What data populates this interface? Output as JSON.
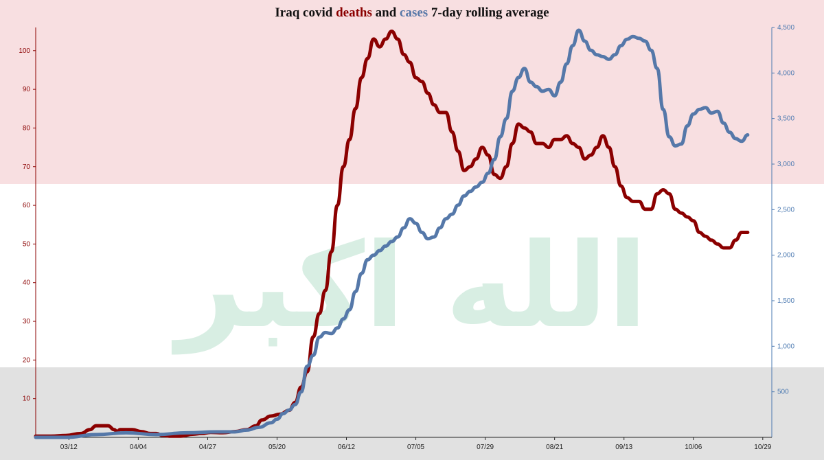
{
  "title": {
    "prefix": "Iraq covid ",
    "deaths_word": "deaths",
    "middle": " and ",
    "cases_word": "cases",
    "suffix": " 7-day rolling average"
  },
  "colors": {
    "deaths": "#8b0000",
    "cases": "#5578a9",
    "cases_early": "#4f8fc0",
    "flag_red": "#f8dfe1",
    "flag_white": "#ffffff",
    "flag_black": "#e1e1e1",
    "flag_green_text": "#d8eee3"
  },
  "watermark_text": "الله اكبر",
  "chart_data": {
    "type": "line",
    "title": "Iraq covid deaths and cases 7-day rolling average",
    "x_ticks": [
      "03/12",
      "04/04",
      "04/27",
      "05/20",
      "06/12",
      "07/05",
      "07/29",
      "08/21",
      "09/13",
      "10/06",
      "10/29"
    ],
    "x_start": "03/01",
    "x_range_days": [
      0,
      244
    ],
    "y_left": {
      "label": "deaths",
      "range": [
        0,
        106
      ],
      "ticks": [
        10,
        20,
        30,
        40,
        50,
        60,
        70,
        80,
        90,
        100
      ]
    },
    "y_right": {
      "label": "cases",
      "range": [
        0,
        4500
      ],
      "ticks": [
        500,
        1000,
        1500,
        2000,
        2500,
        3000,
        3500,
        4000,
        4500
      ],
      "tick_labels": [
        "500",
        "1,000",
        "1,500",
        "2,000",
        "2,500",
        "3,000",
        "3,500",
        "4,000",
        "4,500"
      ]
    },
    "grid": false,
    "legend": "none",
    "series": [
      {
        "name": "deaths",
        "axis": "left",
        "points": [
          [
            0,
            0.3
          ],
          [
            5,
            0.3
          ],
          [
            10,
            0.5
          ],
          [
            15,
            1
          ],
          [
            18,
            2
          ],
          [
            20,
            3
          ],
          [
            22,
            3
          ],
          [
            24,
            3
          ],
          [
            26,
            2
          ],
          [
            27,
            1.5
          ],
          [
            28,
            2
          ],
          [
            30,
            2
          ],
          [
            32,
            2
          ],
          [
            35,
            1.5
          ],
          [
            38,
            1
          ],
          [
            40,
            1
          ],
          [
            42,
            0.5
          ],
          [
            45,
            0.3
          ],
          [
            48,
            0.3
          ],
          [
            52,
            0.8
          ],
          [
            55,
            1
          ],
          [
            58,
            1.3
          ],
          [
            62,
            1.2
          ],
          [
            66,
            1.5
          ],
          [
            70,
            2
          ],
          [
            73,
            3
          ],
          [
            75,
            4.5
          ],
          [
            78,
            5.5
          ],
          [
            81,
            6
          ],
          [
            84,
            7
          ],
          [
            86,
            9
          ],
          [
            88,
            13
          ],
          [
            90,
            17
          ],
          [
            92,
            26
          ],
          [
            94,
            32
          ],
          [
            96,
            38
          ],
          [
            98,
            48
          ],
          [
            100,
            60
          ],
          [
            102,
            70
          ],
          [
            104,
            77
          ],
          [
            106,
            85
          ],
          [
            108,
            93
          ],
          [
            110,
            98
          ],
          [
            112,
            103
          ],
          [
            114,
            101
          ],
          [
            116,
            103
          ],
          [
            118,
            105
          ],
          [
            120,
            103
          ],
          [
            122,
            99
          ],
          [
            124,
            97
          ],
          [
            126,
            93
          ],
          [
            128,
            92
          ],
          [
            130,
            89
          ],
          [
            132,
            86
          ],
          [
            134,
            84
          ],
          [
            136,
            84
          ],
          [
            138,
            79
          ],
          [
            140,
            74
          ],
          [
            142,
            69
          ],
          [
            144,
            70
          ],
          [
            146,
            72
          ],
          [
            148,
            75
          ],
          [
            150,
            73
          ],
          [
            152,
            68
          ],
          [
            154,
            67
          ],
          [
            156,
            70
          ],
          [
            158,
            76
          ],
          [
            160,
            81
          ],
          [
            162,
            80
          ],
          [
            164,
            79
          ],
          [
            166,
            76
          ],
          [
            168,
            76
          ],
          [
            170,
            75
          ],
          [
            172,
            77
          ],
          [
            174,
            77
          ],
          [
            176,
            78
          ],
          [
            178,
            76
          ],
          [
            180,
            75
          ],
          [
            182,
            72
          ],
          [
            184,
            73
          ],
          [
            186,
            75
          ],
          [
            188,
            78
          ],
          [
            190,
            75
          ],
          [
            192,
            70
          ],
          [
            194,
            65
          ],
          [
            196,
            62
          ],
          [
            198,
            61
          ],
          [
            200,
            61
          ],
          [
            202,
            59
          ],
          [
            204,
            59
          ],
          [
            206,
            63
          ],
          [
            208,
            64
          ],
          [
            210,
            63
          ],
          [
            212,
            59
          ],
          [
            214,
            58
          ],
          [
            216,
            57
          ],
          [
            218,
            56
          ],
          [
            220,
            53
          ],
          [
            222,
            52
          ],
          [
            224,
            51
          ],
          [
            226,
            50
          ],
          [
            228,
            49
          ],
          [
            230,
            49
          ],
          [
            232,
            51
          ],
          [
            234,
            53
          ],
          [
            236,
            53
          ]
        ]
      },
      {
        "name": "cases",
        "axis": "right",
        "points": [
          [
            0,
            0
          ],
          [
            10,
            0
          ],
          [
            20,
            30
          ],
          [
            30,
            50
          ],
          [
            40,
            30
          ],
          [
            50,
            50
          ],
          [
            60,
            60
          ],
          [
            66,
            60
          ],
          [
            70,
            80
          ],
          [
            74,
            110
          ],
          [
            78,
            160
          ],
          [
            80,
            200
          ],
          [
            82,
            260
          ],
          [
            84,
            300
          ],
          [
            86,
            360
          ],
          [
            88,
            500
          ],
          [
            90,
            780
          ],
          [
            92,
            900
          ],
          [
            94,
            1100
          ],
          [
            96,
            1150
          ],
          [
            98,
            1140
          ],
          [
            100,
            1200
          ],
          [
            102,
            1300
          ],
          [
            104,
            1400
          ],
          [
            106,
            1600
          ],
          [
            108,
            1800
          ],
          [
            110,
            1950
          ],
          [
            112,
            2000
          ],
          [
            114,
            2050
          ],
          [
            116,
            2100
          ],
          [
            118,
            2150
          ],
          [
            120,
            2200
          ],
          [
            122,
            2300
          ],
          [
            124,
            2400
          ],
          [
            126,
            2350
          ],
          [
            128,
            2250
          ],
          [
            130,
            2180
          ],
          [
            132,
            2200
          ],
          [
            134,
            2300
          ],
          [
            136,
            2400
          ],
          [
            138,
            2450
          ],
          [
            140,
            2550
          ],
          [
            142,
            2650
          ],
          [
            144,
            2700
          ],
          [
            146,
            2750
          ],
          [
            148,
            2800
          ],
          [
            150,
            2900
          ],
          [
            152,
            3050
          ],
          [
            154,
            3300
          ],
          [
            156,
            3500
          ],
          [
            158,
            3800
          ],
          [
            160,
            3950
          ],
          [
            162,
            4050
          ],
          [
            164,
            3900
          ],
          [
            166,
            3850
          ],
          [
            168,
            3800
          ],
          [
            170,
            3820
          ],
          [
            172,
            3750
          ],
          [
            174,
            3900
          ],
          [
            176,
            4100
          ],
          [
            178,
            4300
          ],
          [
            180,
            4470
          ],
          [
            182,
            4350
          ],
          [
            184,
            4250
          ],
          [
            186,
            4200
          ],
          [
            188,
            4180
          ],
          [
            190,
            4150
          ],
          [
            192,
            4200
          ],
          [
            194,
            4300
          ],
          [
            196,
            4370
          ],
          [
            198,
            4400
          ],
          [
            200,
            4380
          ],
          [
            202,
            4350
          ],
          [
            204,
            4250
          ],
          [
            206,
            4050
          ],
          [
            208,
            3600
          ],
          [
            210,
            3300
          ],
          [
            212,
            3200
          ],
          [
            214,
            3220
          ],
          [
            216,
            3420
          ],
          [
            218,
            3550
          ],
          [
            220,
            3600
          ],
          [
            222,
            3620
          ],
          [
            224,
            3560
          ],
          [
            226,
            3580
          ],
          [
            228,
            3450
          ],
          [
            230,
            3350
          ],
          [
            232,
            3280
          ],
          [
            234,
            3250
          ],
          [
            236,
            3320
          ]
        ]
      }
    ]
  }
}
